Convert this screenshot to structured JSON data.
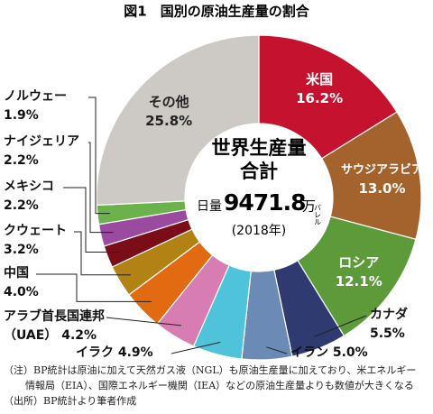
{
  "chart_data": {
    "type": "donut",
    "title": "図1　国別の原油生産量の割合",
    "categories": [
      "米国",
      "サウジアラビア",
      "ロシア",
      "カナダ",
      "イラン",
      "イラク",
      "アラブ首長国連邦（UAE）",
      "中国",
      "クウェート",
      "メキシコ",
      "ナイジェリア",
      "ノルウェー",
      "その他"
    ],
    "values": [
      16.2,
      13.0,
      12.1,
      5.5,
      5.0,
      4.9,
      4.2,
      4.0,
      3.2,
      2.2,
      2.2,
      1.9,
      25.8
    ],
    "value_labels": [
      "16.2%",
      "13.0%",
      "12.1%",
      "5.5%",
      "5.0%",
      "4.9%",
      "4.2%",
      "4.0%",
      "3.2%",
      "2.2%",
      "2.2%",
      "1.9%",
      "25.8%"
    ],
    "colors": [
      "#c4122f",
      "#a4632c",
      "#5d9a3a",
      "#2f3a70",
      "#6b8bb6",
      "#4ec3d9",
      "#d77db3",
      "#e26b12",
      "#b38214",
      "#7b0d18",
      "#9a4a9f",
      "#6cb24c",
      "#cdc9c5"
    ],
    "center": {
      "line1": "世界生産量",
      "line2": "合計",
      "prefix": "日量",
      "value": 9471.8,
      "unit": "万",
      "unit2": "バレル",
      "year": "(2018年)"
    }
  },
  "notes": [
    "（注）BP統計は原油に加えて天然ガス液（NGL）も原油生産量に加えており、米エネルギー",
    "情報局（EIA）、国際エネルギー機関（IEA）などの原油生産量よりも数値が大きくなる",
    "（出所）BP統計より筆者作成"
  ]
}
